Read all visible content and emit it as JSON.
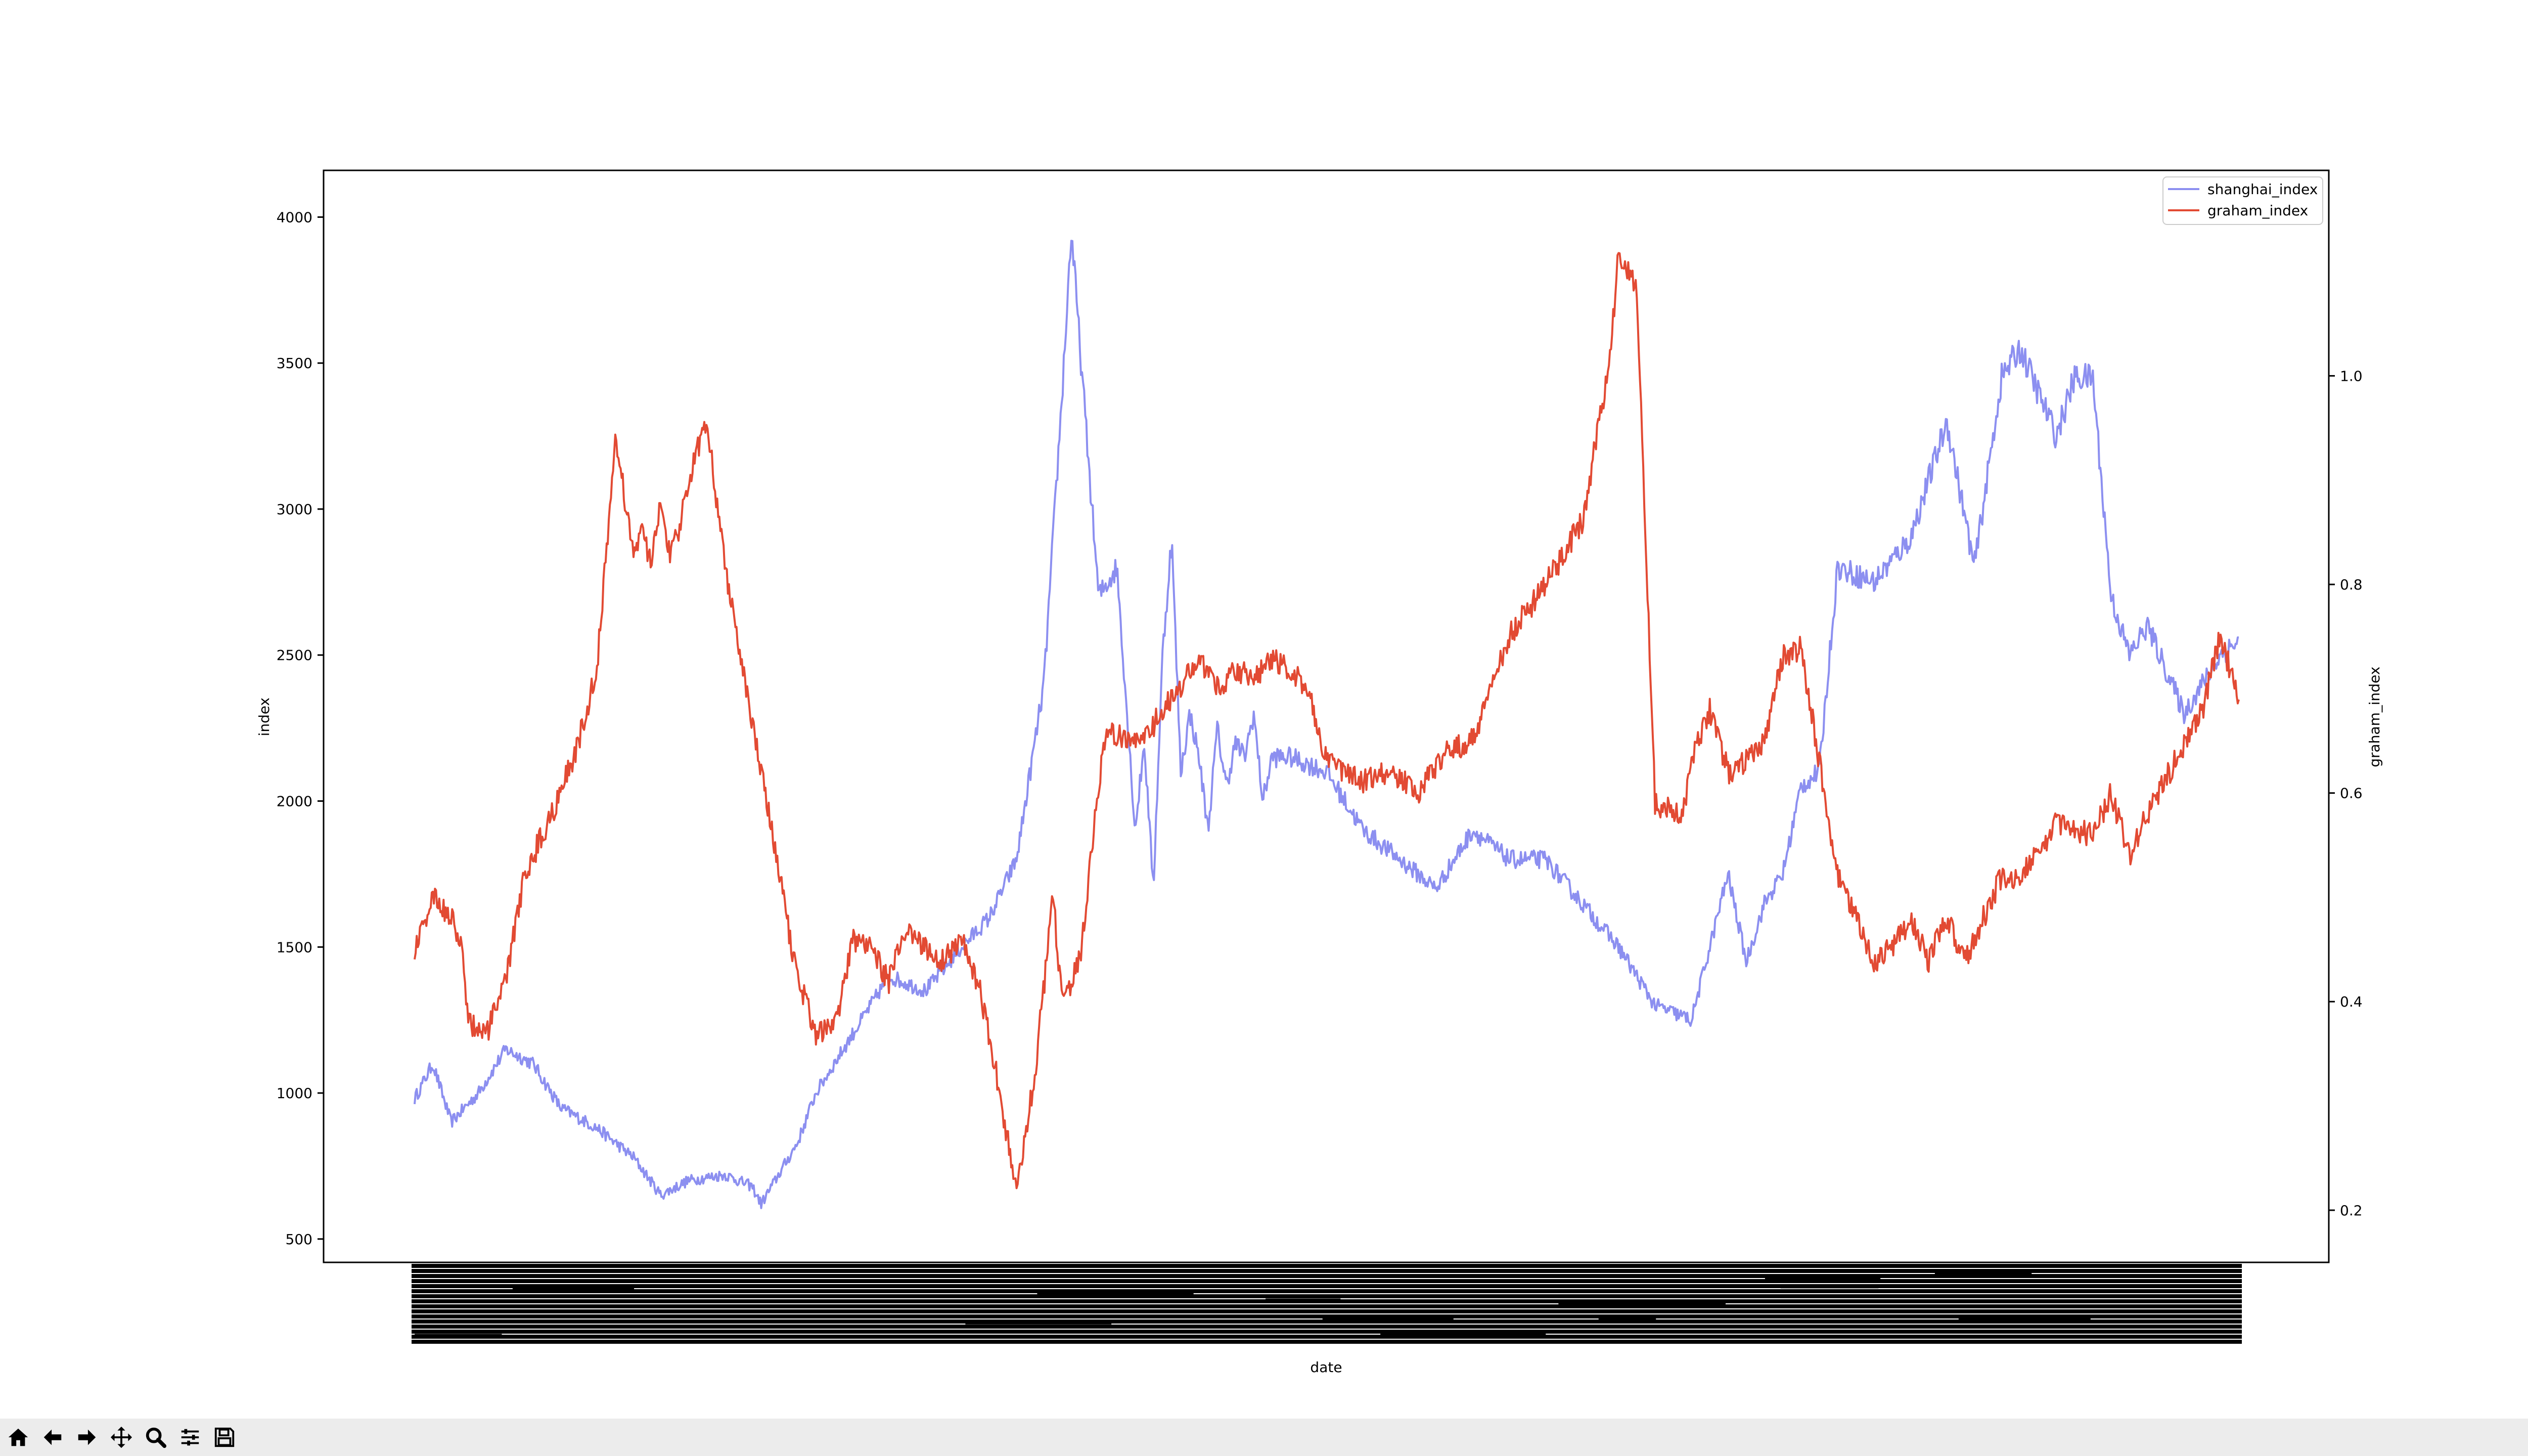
{
  "chart_data": {
    "type": "line",
    "title": "",
    "xlabel": "date",
    "ylabel": "index",
    "y2label": "graham_index",
    "x_tick_labels": "dense overlapping date labels (unreadable)",
    "ylim": [
      420,
      4160
    ],
    "y2lim": [
      0.15,
      1.197
    ],
    "yticks": [
      500,
      1000,
      1500,
      2000,
      2500,
      3000,
      3500,
      4000
    ],
    "y2ticks": [
      0.2,
      0.4,
      0.6,
      0.8,
      1.0
    ],
    "ytick_labels": [
      "500",
      "1000",
      "1500",
      "2000",
      "2500",
      "3000",
      "3500",
      "4000"
    ],
    "y2tick_labels": [
      "0.2",
      "0.4",
      "0.6",
      "0.8",
      "1.0"
    ],
    "legend_position": "top-right",
    "series": [
      {
        "name": "shanghai_index",
        "axis": "left",
        "color": "#8c8ff0",
        "t": [
          0,
          0.01,
          0.02,
          0.035,
          0.05,
          0.065,
          0.08,
          0.1,
          0.12,
          0.135,
          0.15,
          0.17,
          0.185,
          0.19,
          0.21,
          0.22,
          0.24,
          0.26,
          0.28,
          0.3,
          0.315,
          0.33,
          0.345,
          0.355,
          0.36,
          0.375,
          0.385,
          0.395,
          0.4,
          0.405,
          0.41,
          0.415,
          0.42,
          0.425,
          0.43,
          0.435,
          0.44,
          0.445,
          0.45,
          0.455,
          0.46,
          0.465,
          0.47,
          0.48,
          0.5,
          0.52,
          0.54,
          0.56,
          0.58,
          0.6,
          0.62,
          0.64,
          0.66,
          0.68,
          0.7,
          0.72,
          0.73,
          0.74,
          0.75,
          0.76,
          0.77,
          0.78,
          0.8,
          0.82,
          0.84,
          0.855,
          0.87,
          0.88,
          0.9,
          0.91,
          0.92,
          0.93,
          0.94,
          0.95,
          0.96,
          0.97,
          0.98,
          0.99,
          1.0
        ],
        "values": [
          980,
          1100,
          900,
          1000,
          1150,
          1100,
          950,
          880,
          780,
          650,
          700,
          720,
          680,
          620,
          830,
          1000,
          1200,
          1400,
          1350,
          1500,
          1600,
          1800,
          2400,
          3400,
          3950,
          2700,
          2800,
          1900,
          2200,
          1700,
          2500,
          2900,
          2100,
          2300,
          2150,
          1900,
          2250,
          2050,
          2200,
          2150,
          2300,
          2000,
          2150,
          2150,
          2100,
          1900,
          1800,
          1700,
          1900,
          1800,
          1800,
          1650,
          1500,
          1300,
          1250,
          1750,
          1450,
          1650,
          1750,
          2050,
          2100,
          2800,
          2750,
          2900,
          3300,
          2800,
          3450,
          3550,
          3250,
          3450,
          3450,
          2700,
          2500,
          2600,
          2450,
          2300,
          2400,
          2500,
          2550
        ]
      },
      {
        "name": "graham_index",
        "axis": "right",
        "color": "#e24a33",
        "t": [
          0,
          0.01,
          0.02,
          0.025,
          0.03,
          0.04,
          0.05,
          0.06,
          0.07,
          0.08,
          0.09,
          0.1,
          0.11,
          0.12,
          0.125,
          0.13,
          0.135,
          0.14,
          0.145,
          0.15,
          0.16,
          0.17,
          0.18,
          0.19,
          0.2,
          0.21,
          0.215,
          0.22,
          0.23,
          0.235,
          0.24,
          0.25,
          0.26,
          0.27,
          0.28,
          0.29,
          0.3,
          0.31,
          0.32,
          0.33,
          0.34,
          0.35,
          0.355,
          0.365,
          0.375,
          0.38,
          0.39,
          0.4,
          0.41,
          0.42,
          0.43,
          0.44,
          0.45,
          0.46,
          0.47,
          0.49,
          0.5,
          0.52,
          0.535,
          0.55,
          0.565,
          0.58,
          0.6,
          0.62,
          0.64,
          0.655,
          0.66,
          0.67,
          0.68,
          0.695,
          0.7,
          0.71,
          0.72,
          0.73,
          0.74,
          0.75,
          0.76,
          0.78,
          0.8,
          0.81,
          0.82,
          0.83,
          0.84,
          0.85,
          0.87,
          0.88,
          0.9,
          0.92,
          0.93,
          0.94,
          0.95,
          0.965,
          0.98,
          0.99,
          1.0
        ],
        "values": [
          0.45,
          0.5,
          0.48,
          0.46,
          0.38,
          0.37,
          0.42,
          0.52,
          0.56,
          0.6,
          0.65,
          0.72,
          0.94,
          0.83,
          0.85,
          0.82,
          0.88,
          0.83,
          0.85,
          0.9,
          0.96,
          0.82,
          0.72,
          0.62,
          0.52,
          0.42,
          0.4,
          0.37,
          0.38,
          0.41,
          0.46,
          0.45,
          0.42,
          0.47,
          0.45,
          0.44,
          0.46,
          0.41,
          0.32,
          0.22,
          0.33,
          0.5,
          0.4,
          0.44,
          0.61,
          0.66,
          0.65,
          0.65,
          0.68,
          0.7,
          0.73,
          0.7,
          0.72,
          0.71,
          0.73,
          0.7,
          0.63,
          0.61,
          0.62,
          0.6,
          0.64,
          0.65,
          0.75,
          0.8,
          0.86,
          1.01,
          1.12,
          1.08,
          0.59,
          0.58,
          0.63,
          0.68,
          0.62,
          0.63,
          0.65,
          0.73,
          0.74,
          0.52,
          0.44,
          0.45,
          0.48,
          0.44,
          0.48,
          0.44,
          0.52,
          0.52,
          0.57,
          0.56,
          0.6,
          0.54,
          0.58,
          0.63,
          0.68,
          0.75,
          0.69
        ]
      }
    ]
  },
  "toolbar": [
    {
      "name": "home-button",
      "icon": "home-icon"
    },
    {
      "name": "back-button",
      "icon": "arrow-left-icon"
    },
    {
      "name": "forward-button",
      "icon": "arrow-right-icon"
    },
    {
      "name": "pan-button",
      "icon": "move-icon"
    },
    {
      "name": "zoom-button",
      "icon": "magnifier-icon"
    },
    {
      "name": "configure-subplots-button",
      "icon": "sliders-icon"
    },
    {
      "name": "save-button",
      "icon": "floppy-disk-icon"
    }
  ]
}
